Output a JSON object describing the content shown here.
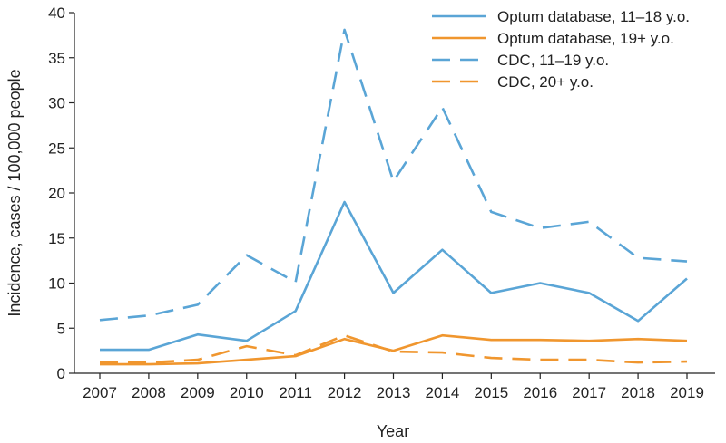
{
  "chart_data": {
    "type": "line",
    "title": "",
    "xlabel": "Year",
    "ylabel": "Incidence, cases / 100,000 people",
    "ylim": [
      0,
      40
    ],
    "yticks": [
      0,
      5,
      10,
      15,
      20,
      25,
      30,
      35,
      40
    ],
    "grid": false,
    "legend_position": "top-right",
    "categories": [
      "2007",
      "2008",
      "2009",
      "2010",
      "2011",
      "2012",
      "2013",
      "2014",
      "2015",
      "2016",
      "2017",
      "2018",
      "2019"
    ],
    "series": [
      {
        "name": "Optum database, 11–18 y.o.",
        "color": "#5aa5d6",
        "dash": "solid",
        "values": [
          2.6,
          2.6,
          4.3,
          3.6,
          6.9,
          19.0,
          8.9,
          13.7,
          8.9,
          10.0,
          8.9,
          5.8,
          10.5
        ]
      },
      {
        "name": "Optum database, 19+ y.o.",
        "color": "#f0962e",
        "dash": "solid",
        "values": [
          1.0,
          1.0,
          1.1,
          1.5,
          1.9,
          3.8,
          2.5,
          4.2,
          3.7,
          3.7,
          3.6,
          3.8,
          3.6
        ]
      },
      {
        "name": "CDC, 11–19 y.o.",
        "color": "#5aa5d6",
        "dash": "dashed",
        "values": [
          5.9,
          6.4,
          7.6,
          13.1,
          10.1,
          38.1,
          21.3,
          29.5,
          17.9,
          16.1,
          16.8,
          12.8,
          12.4
        ]
      },
      {
        "name": "CDC, 20+ y.o.",
        "color": "#f0962e",
        "dash": "dashed",
        "values": [
          1.2,
          1.2,
          1.5,
          3.0,
          2.0,
          4.2,
          2.4,
          2.3,
          1.7,
          1.5,
          1.5,
          1.2,
          1.3
        ]
      }
    ]
  }
}
